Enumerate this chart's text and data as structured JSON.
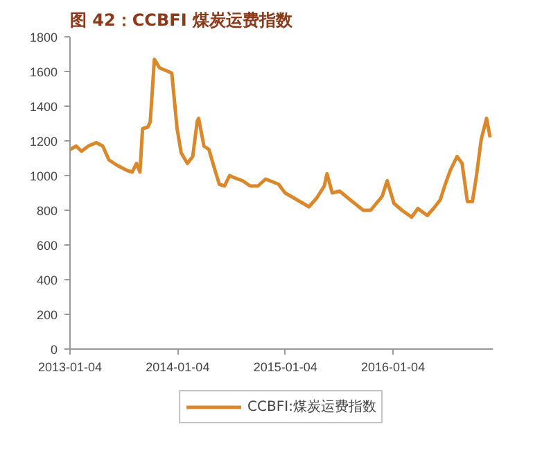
{
  "chart_data": {
    "type": "line",
    "title": "图 42：CCBFI 煤炭运费指数",
    "x": [
      "2013-01-04",
      "2013-01-25",
      "2013-02-12",
      "2013-03-07",
      "2013-04-03",
      "2013-04-25",
      "2013-05-16",
      "2013-06-12",
      "2013-07-16",
      "2013-08-03",
      "2013-08-17",
      "2013-08-29",
      "2013-09-07",
      "2013-09-25",
      "2013-10-03",
      "2013-10-17",
      "2013-11-04",
      "2013-12-03",
      "2013-12-15",
      "2014-01-02",
      "2014-01-16",
      "2014-02-06",
      "2014-02-24",
      "2014-03-11",
      "2014-03-16",
      "2014-04-03",
      "2014-04-20",
      "2014-05-07",
      "2014-05-25",
      "2014-06-12",
      "2014-06-29",
      "2014-07-11",
      "2014-08-12",
      "2014-09-07",
      "2014-10-03",
      "2014-10-29",
      "2014-12-12",
      "2015-01-03",
      "2015-03-25",
      "2015-04-20",
      "2015-05-16",
      "2015-05-25",
      "2015-06-12",
      "2015-07-07",
      "2015-08-12",
      "2015-09-25",
      "2015-10-20",
      "2015-11-28",
      "2015-12-15",
      "2016-01-07",
      "2016-02-03",
      "2016-03-07",
      "2016-03-28",
      "2016-04-29",
      "2016-05-20",
      "2016-06-12",
      "2016-06-29",
      "2016-07-16",
      "2016-08-08",
      "2016-08-25",
      "2016-09-12",
      "2016-09-29",
      "2016-10-12",
      "2016-10-29",
      "2016-11-16",
      "2016-11-28"
    ],
    "series": [
      {
        "name": "CCBFI:煤炭运费指数",
        "color": "#d9892b",
        "values": [
          1150,
          1170,
          1140,
          1170,
          1190,
          1170,
          1090,
          1060,
          1030,
          1020,
          1070,
          1020,
          1270,
          1280,
          1310,
          1670,
          1620,
          1600,
          1590,
          1270,
          1130,
          1070,
          1110,
          1310,
          1330,
          1170,
          1150,
          1050,
          950,
          940,
          1000,
          990,
          970,
          940,
          940,
          980,
          950,
          900,
          820,
          870,
          940,
          1010,
          900,
          910,
          860,
          800,
          800,
          880,
          970,
          840,
          800,
          760,
          810,
          770,
          810,
          860,
          950,
          1030,
          1110,
          1070,
          850,
          850,
          990,
          1210,
          1330,
          1220
        ]
      }
    ],
    "xlim": [
      "2013-01-04",
      "2016-12-07"
    ],
    "xticks": [
      "2013-01-04",
      "2014-01-04",
      "2015-01-04",
      "2016-01-04"
    ],
    "ylim": [
      0,
      1800
    ],
    "yticks": [
      0,
      200,
      400,
      600,
      800,
      1000,
      1200,
      1400,
      1600,
      1800
    ],
    "grid": false,
    "legend": "bottom",
    "marker": "none",
    "line_style": "solid"
  }
}
